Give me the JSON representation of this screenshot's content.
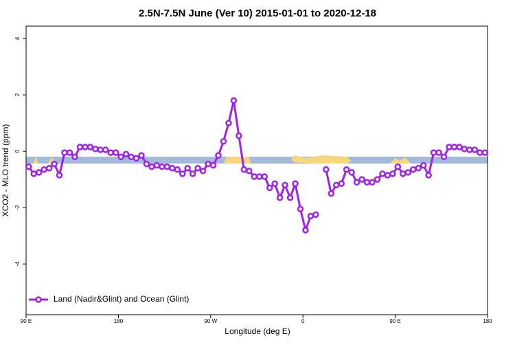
{
  "chart_data": {
    "type": "line",
    "title": "2.5N-7.5N June (Ver 10)   2015-01-01 to 2020-12-18",
    "x_label": "Longitude (deg E)",
    "y_label": "XCO2 - MLO trend (ppm)",
    "xlim": [
      90,
      540
    ],
    "ylim": [
      -5.8,
      4.44
    ],
    "xticks": [
      {
        "value": 90,
        "label": "90 E"
      },
      180,
      {
        "value": 270,
        "label": "90 W"
      },
      {
        "value": 360,
        "label": "0"
      },
      {
        "value": 450,
        "label": "90 E"
      },
      {
        "value": 540,
        "label": "180"
      }
    ],
    "yticks": [
      -4,
      -2,
      0,
      2,
      4
    ],
    "legend": "bottom-left",
    "x": [
      92.5,
      97.5,
      102.5,
      107.5,
      112.5,
      117.5,
      122.5,
      127.5,
      132.5,
      137.5,
      142.5,
      147.5,
      152.5,
      157.5,
      162.5,
      167.5,
      172.5,
      177.5,
      182.5,
      187.5,
      192.5,
      197.5,
      202.5,
      207.5,
      212.5,
      217.5,
      222.5,
      227.5,
      232.5,
      237.5,
      242.5,
      247.5,
      252.5,
      257.5,
      262.5,
      267.5,
      272.5,
      277.5,
      282.5,
      287.5,
      292.5,
      297.5,
      302.5,
      307.5,
      312.5,
      317.5,
      322.5,
      327.5,
      332.5,
      337.5,
      342.5,
      347.5,
      352.5,
      357.5,
      362.5,
      367.5,
      372.5,
      377.5,
      382.5,
      387.5,
      392.5,
      397.5,
      402.5,
      407.5,
      412.5,
      417.5,
      422.5,
      427.5,
      432.5,
      437.5,
      442.5,
      447.5,
      452.5,
      457.5,
      462.5,
      467.5,
      472.5,
      477.5,
      482.5,
      487.5,
      492.5,
      497.5,
      502.5,
      507.5,
      512.5,
      517.5,
      522.5,
      527.5,
      532.5,
      537.5
    ],
    "series": [
      {
        "name": "Land (Nadir&Glint) and Ocean (Glint)",
        "color": "#a020f0",
        "values": [
          -0.55,
          -0.8,
          -0.75,
          -0.65,
          -0.6,
          -0.45,
          -0.85,
          -0.05,
          -0.05,
          -0.2,
          0.15,
          0.15,
          0.15,
          0.08,
          0.05,
          0.05,
          -0.05,
          -0.05,
          -0.2,
          -0.1,
          -0.2,
          -0.25,
          -0.15,
          -0.45,
          -0.55,
          -0.5,
          -0.55,
          -0.55,
          -0.6,
          -0.65,
          -0.8,
          -0.6,
          -0.8,
          -0.6,
          -0.7,
          -0.45,
          -0.5,
          -0.15,
          0.35,
          1.0,
          1.8,
          0.55,
          -0.65,
          -0.7,
          -0.9,
          -0.9,
          -0.9,
          -1.3,
          -1.15,
          -1.65,
          -1.2,
          -1.65,
          -1.15,
          -2.05,
          -2.8,
          -2.3,
          -2.25,
          null,
          -0.65,
          -1.5,
          -1.2,
          -1.15,
          -0.65,
          -0.75,
          -1.1,
          -1.0,
          -1.1,
          -1.1,
          -1.0,
          -0.8,
          -0.85,
          -0.8,
          -0.55,
          -0.8,
          -0.75,
          -0.65,
          -0.6,
          -0.5,
          -0.85,
          -0.05,
          -0.05,
          -0.2,
          0.15,
          0.15,
          0.15,
          0.08,
          0.05,
          0.05,
          -0.05,
          -0.05
        ]
      }
    ]
  }
}
